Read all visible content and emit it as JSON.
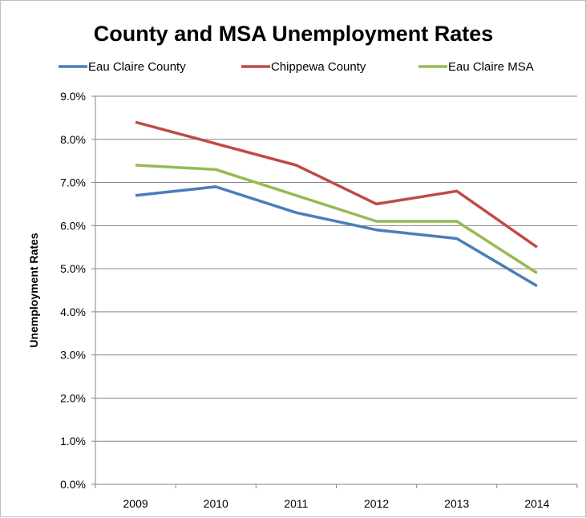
{
  "chart_data": {
    "type": "line",
    "title": "County and MSA Unemployment Rates",
    "xlabel": "",
    "ylabel": "Unemployment Rates",
    "categories": [
      "2009",
      "2010",
      "2011",
      "2012",
      "2013",
      "2014"
    ],
    "ylim": [
      0,
      9
    ],
    "yticks": [
      "0.0%",
      "1.0%",
      "2.0%",
      "3.0%",
      "4.0%",
      "5.0%",
      "6.0%",
      "7.0%",
      "8.0%",
      "9.0%"
    ],
    "grid": true,
    "legend_position": "top",
    "series": [
      {
        "name": "Eau Claire County",
        "color": "#4a7ebb",
        "values": [
          6.7,
          6.9,
          6.3,
          5.9,
          5.7,
          4.6
        ]
      },
      {
        "name": "Chippewa County",
        "color": "#be4b48",
        "values": [
          8.4,
          7.9,
          7.4,
          6.5,
          6.8,
          5.5
        ]
      },
      {
        "name": "Eau Claire MSA",
        "color": "#98b954",
        "values": [
          7.4,
          7.3,
          6.7,
          6.1,
          6.1,
          4.9
        ]
      }
    ]
  }
}
